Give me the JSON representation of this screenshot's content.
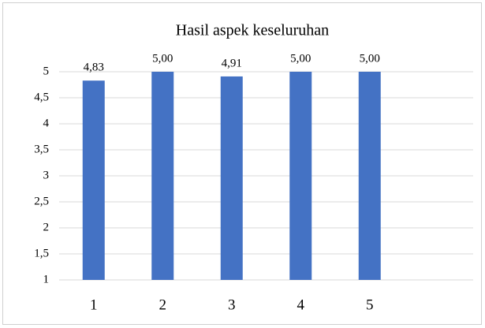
{
  "chart_data": {
    "type": "bar",
    "title": "Hasil aspek keseluruhan",
    "categories": [
      "1",
      "2",
      "3",
      "4",
      "5",
      null
    ],
    "values": [
      4.83,
      5.0,
      4.91,
      5.0,
      5.0,
      null
    ],
    "value_labels": [
      "4,83",
      "5,00",
      "4,91",
      "5,00",
      "5,00",
      null
    ],
    "color": "#4472c4",
    "ylim": [
      1,
      5
    ],
    "yticks": [
      1,
      {
        "value": 1.5,
        "label": "1,5"
      },
      2,
      {
        "value": 2.5,
        "label": "2,5"
      },
      3,
      {
        "value": 3.5,
        "label": "3,5"
      },
      4,
      {
        "value": 4.5,
        "label": "4,5"
      },
      5
    ],
    "grid": true
  }
}
